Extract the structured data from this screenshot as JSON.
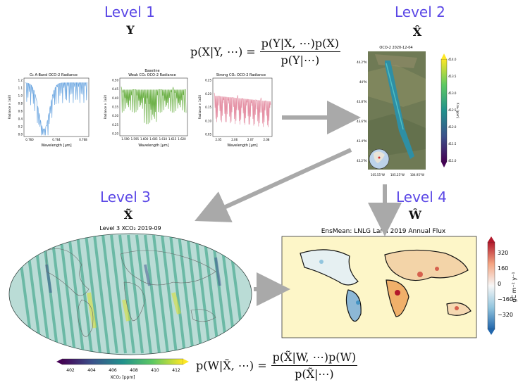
{
  "level1": {
    "title": "Level 1",
    "symbol": "Y"
  },
  "level2": {
    "title": "Level 2",
    "symbol": "X̂"
  },
  "level3": {
    "title": "Level 3",
    "symbol": "X̃"
  },
  "level4": {
    "title": "Level 4",
    "symbol": "Ŵ"
  },
  "equation1": {
    "lhs": "p(X|Y, ⋯) =",
    "numerator": "p(Y|X, ⋯)p(X)",
    "denominator": "p(Y|⋯)"
  },
  "equation2": {
    "lhs": "p(W|X̃, ⋯) =",
    "numerator": "p(X̃|W, ⋯)p(W)",
    "denominator": "p(X̃|⋯)"
  },
  "spectra": [
    {
      "title": "O₂ A-Band OCO-2 Radiance",
      "subtitle": "",
      "xlabel": "Wavelength [μm]",
      "ylabel": "Radiance × 1e20",
      "yticks": [
        "1.2",
        "1.1",
        "1.0",
        "0.8",
        "0.6",
        "0.4",
        "0.2",
        "0.0"
      ],
      "xticks": [
        "0.760",
        "0.764",
        "0.768"
      ],
      "color": "#6aa5e0"
    },
    {
      "title": "Weak CO₂ OCO-2 Radiance",
      "subtitle": "Baseline",
      "xlabel": "Wavelength [μm]",
      "ylabel": "Radiance × 1e20",
      "yticks": [
        "0.50",
        "0.45",
        "0.40",
        "0.35",
        "0.30",
        "0.25",
        "0.20"
      ],
      "xticks": [
        "1.590",
        "1.595",
        "1.600",
        "1.605",
        "1.610",
        "1.615",
        "1.620"
      ],
      "color": "#6fb24a"
    },
    {
      "title": "Strong CO₂ OCO-2 Radiance",
      "subtitle": "",
      "xlabel": "Wavelength [μm]",
      "ylabel": "Radiance × 1e20",
      "yticks": [
        "0.25",
        "0.20",
        "0.15",
        "0.10",
        "0.05"
      ],
      "xticks": [
        "2.05",
        "2.06",
        "2.07",
        "2.08"
      ],
      "color": "#e592a6"
    }
  ],
  "level2_map": {
    "title": "OCO-2 2020-12-04",
    "lat_ticks": [
      "44.2°N",
      "44°N",
      "43.8°N",
      "43.6°N",
      "43.4°N",
      "43.2°N"
    ],
    "lon_ticks": [
      "105.55°W",
      "105.25°W",
      "104.95°W"
    ],
    "cbar_ticks": [
      "414.0",
      "413.5",
      "413.0",
      "412.5",
      "412.0",
      "411.5",
      "411.0"
    ],
    "cbar_label": "Xco₂ [ppm]"
  },
  "level3_map": {
    "title": "Level 3 XCO₂ 2019-09",
    "cbar_ticks": [
      "402",
      "404",
      "406",
      "408",
      "410",
      "412"
    ],
    "cbar_label": "XCO₂ [ppm]"
  },
  "level4_map": {
    "title": "EnsMean: LNLG Land 2019 Annual Flux",
    "cbar_ticks": [
      "320",
      "160",
      "0",
      "−160",
      "−320"
    ],
    "cbar_label": "gC m⁻² y⁻¹"
  },
  "colors": {
    "level_title": "#5b48e6",
    "arrow": "#a9a9a9"
  }
}
